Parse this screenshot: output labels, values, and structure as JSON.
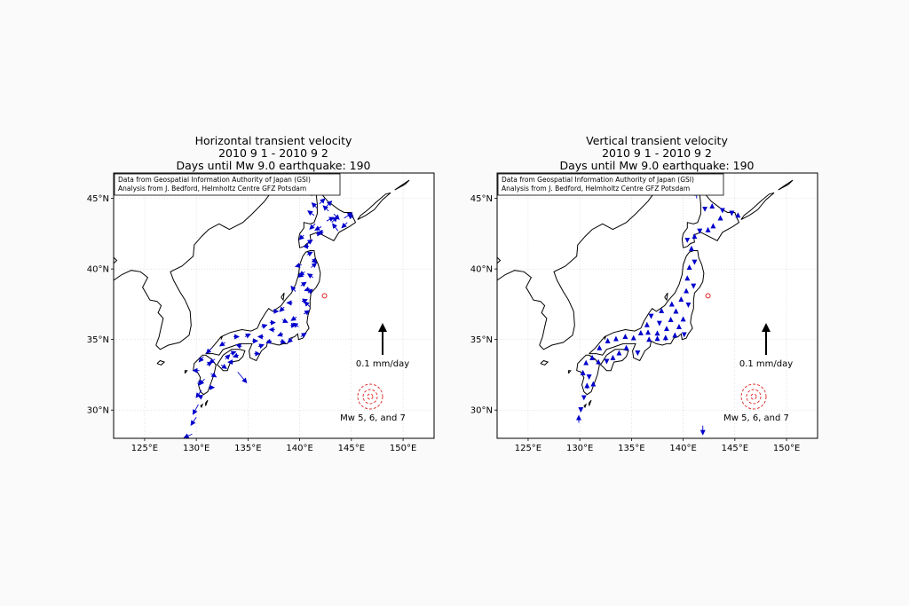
{
  "panels": [
    {
      "id": "left",
      "title_line1": "Horizontal transient velocity",
      "title_line2": "2010 9 1 - 2010 9 2",
      "title_line3": "Days until Mw 9.0 earthquake: 190",
      "credit_line1": "Data from Geospatial Information Authority of Japan (GSI)",
      "credit_line2": "Analysis from J. Bedford, Helmholtz Centre GFZ Potsdam",
      "scale_label": "0.1 mm/day",
      "magnitude_label": "Mw 5, 6, and 7"
    },
    {
      "id": "right",
      "title_line1": "Vertical transient velocity",
      "title_line2": "2010 9 1 - 2010 9 2",
      "title_line3": "Days until Mw 9.0 earthquake: 190",
      "credit_line1": "Data from Geospatial Information Authority of Japan (GSI)",
      "credit_line2": "Analysis from J. Bedford, Helmholtz Centre GFZ Potsdam",
      "scale_label": "0.1 mm/day",
      "magnitude_label": "Mw 5, 6, and 7"
    }
  ],
  "axes": {
    "x_ticks": [
      "125°E",
      "130°E",
      "135°E",
      "140°E",
      "145°E",
      "150°E"
    ],
    "y_ticks": [
      "45°N",
      "40°N",
      "35°N",
      "30°N"
    ]
  },
  "colors": {
    "vector": "#0000cc",
    "coast": "#000000",
    "epicenter": "#dd2222",
    "grid": "#d0d0d0"
  }
}
